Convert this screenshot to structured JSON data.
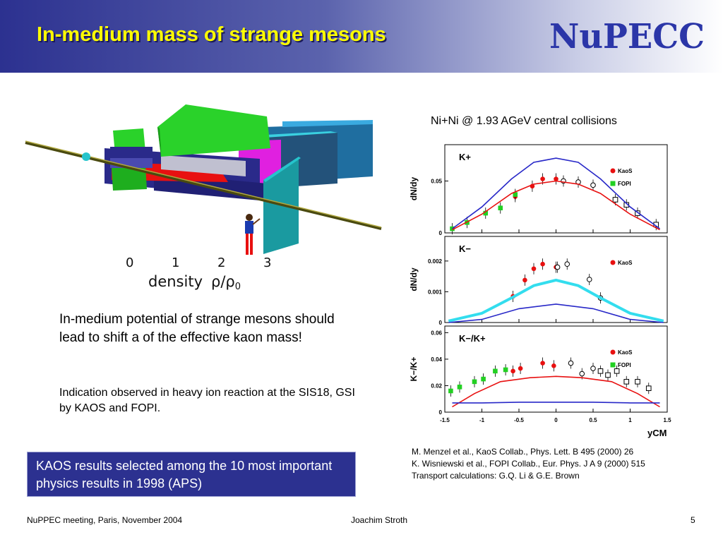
{
  "header": {
    "title": "In-medium mass of strange mesons",
    "logo_text": "NuPECC",
    "bg_color": "#2c3190",
    "title_color": "#ffff00"
  },
  "figure": {
    "density_ticks": [
      "0",
      "1",
      "2",
      "3"
    ],
    "density_label": "density",
    "rho_label": "ρ/ρ",
    "rho_sub": "0"
  },
  "text": {
    "paragraph1": "In-medium potential of strange mesons should lead to shift a of the effective kaon mass!",
    "paragraph2": "Indication observed in heavy ion reaction at the SIS18, GSI by KAOS and FOPI."
  },
  "highlight": {
    "text": "KAOS results selected among the 10 most important physics results in 1998 (APS)"
  },
  "references": [
    "M. Menzel et al., KaoS Collab.,  Phys. Lett. B 495 (2000) 26",
    "K. Wisniewski et al., FOPI Collab., Eur. Phys. J A 9 (2000) 515",
    "Transport calculations: G.Q. Li & G.E. Brown"
  ],
  "footer": {
    "left": "NuPPEC meeting, Paris, November  2004",
    "center": "Joachim Stroth",
    "page": "5"
  },
  "colors": {
    "kaos": "#e81010",
    "fopi": "#22d022",
    "blue_curve": "#2828c8",
    "cyan_curve": "#33ddee"
  },
  "chart_data": [
    {
      "type": "scatter",
      "title": "Ni+Ni @ 1.93 AGeV  central collisions",
      "panel_label": "K+",
      "ylabel": "dN/dy",
      "xlim": [
        -1.5,
        1.5
      ],
      "ylim": [
        0,
        0.085
      ],
      "yticks": [
        {
          "v": 0,
          "label": "0"
        },
        {
          "v": 0.05,
          "label": "0.05"
        }
      ],
      "legend": [
        "KaoS",
        "FOPI"
      ],
      "series": [
        {
          "name": "KaoS",
          "marker": "circle-filled",
          "x": [
            -0.55,
            -0.32,
            -0.18,
            0.0
          ],
          "y": [
            0.035,
            0.045,
            0.052,
            0.052
          ]
        },
        {
          "name": "FOPI",
          "marker": "square-filled",
          "x": [
            -1.4,
            -1.2,
            -0.95,
            -0.75,
            -0.55
          ],
          "y": [
            0.004,
            0.01,
            0.019,
            0.024,
            0.037
          ]
        },
        {
          "marker": "circle-open",
          "x": [
            0.1,
            0.3,
            0.5
          ],
          "y": [
            0.05,
            0.049,
            0.046
          ]
        },
        {
          "marker": "square-open",
          "x": [
            0.8,
            0.95,
            1.1,
            1.35
          ],
          "y": [
            0.032,
            0.027,
            0.019,
            0.008
          ]
        },
        {
          "line": "blue",
          "x": [
            -1.4,
            -1.0,
            -0.6,
            -0.3,
            0.0,
            0.3,
            0.6,
            1.0,
            1.4
          ],
          "y": [
            0.004,
            0.025,
            0.052,
            0.068,
            0.072,
            0.068,
            0.052,
            0.025,
            0.004
          ]
        },
        {
          "line": "red",
          "x": [
            -1.4,
            -1.0,
            -0.6,
            -0.3,
            0.0,
            0.3,
            0.6,
            1.0,
            1.4
          ],
          "y": [
            0.003,
            0.018,
            0.038,
            0.047,
            0.05,
            0.047,
            0.038,
            0.018,
            0.003
          ]
        }
      ]
    },
    {
      "type": "scatter",
      "panel_label": "K−",
      "ylabel": "dN/dy",
      "xlim": [
        -1.5,
        1.5
      ],
      "ylim": [
        0,
        0.0028
      ],
      "yticks": [
        {
          "v": 0,
          "label": "0"
        },
        {
          "v": 0.001,
          "label": "0.001"
        },
        {
          "v": 0.002,
          "label": "0.002"
        }
      ],
      "legend": [
        "KaoS"
      ],
      "series": [
        {
          "name": "KaoS",
          "marker": "circle-filled",
          "x": [
            -0.58,
            -0.42,
            -0.3,
            -0.18,
            0.0
          ],
          "y": [
            0.00085,
            0.00138,
            0.00175,
            0.0019,
            0.0018
          ]
        },
        {
          "marker": "circle-open",
          "x": [
            0.02,
            0.15,
            0.45,
            0.6
          ],
          "y": [
            0.0018,
            0.0019,
            0.0014,
            0.0008
          ]
        },
        {
          "line": "cyan",
          "x": [
            -1.45,
            -1.0,
            -0.6,
            -0.3,
            0.0,
            0.3,
            0.6,
            1.0,
            1.45
          ],
          "y": [
            5e-05,
            0.0003,
            0.0008,
            0.0012,
            0.00138,
            0.0012,
            0.0008,
            0.0003,
            5e-05
          ]
        },
        {
          "line": "blue",
          "x": [
            -1.45,
            -1.0,
            -0.5,
            0.0,
            0.5,
            1.0,
            1.45
          ],
          "y": [
            0.0,
            0.0001,
            0.00045,
            0.0006,
            0.00045,
            0.0001,
            0.0
          ]
        }
      ]
    },
    {
      "type": "scatter",
      "panel_label": "K−/K+",
      "ylabel": "K−/K+",
      "xlabel": "yCM",
      "xlim": [
        -1.5,
        1.5
      ],
      "ylim": [
        0,
        0.065
      ],
      "yticks": [
        {
          "v": 0,
          "label": "0"
        },
        {
          "v": 0.02,
          "label": "0.02"
        },
        {
          "v": 0.04,
          "label": "0.04"
        },
        {
          "v": 0.06,
          "label": "0.06"
        }
      ],
      "xticks": [
        {
          "v": -1.5,
          "label": "-1.5"
        },
        {
          "v": -1.0,
          "label": "-1"
        },
        {
          "v": -0.5,
          "label": "-0.5"
        },
        {
          "v": 0.0,
          "label": "0"
        },
        {
          "v": 0.5,
          "label": "0.5"
        },
        {
          "v": 1.0,
          "label": "1"
        },
        {
          "v": 1.5,
          "label": "1.5"
        }
      ],
      "legend": [
        "KaoS",
        "FOPI"
      ],
      "series": [
        {
          "name": "KaoS",
          "marker": "circle-filled",
          "x": [
            -0.58,
            -0.48,
            -0.18,
            -0.03
          ],
          "y": [
            0.031,
            0.033,
            0.037,
            0.035
          ]
        },
        {
          "name": "FOPI",
          "marker": "square-filled",
          "x": [
            -1.42,
            -1.3,
            -1.1,
            -0.98,
            -0.82,
            -0.68
          ],
          "y": [
            0.016,
            0.019,
            0.023,
            0.025,
            0.031,
            0.032
          ]
        },
        {
          "marker": "circle-open",
          "x": [
            0.2,
            0.35,
            0.5
          ],
          "y": [
            0.037,
            0.029,
            0.033
          ]
        },
        {
          "marker": "square-open",
          "x": [
            0.6,
            0.7,
            0.82,
            0.95,
            1.1,
            1.25
          ],
          "y": [
            0.031,
            0.028,
            0.031,
            0.023,
            0.023,
            0.018
          ]
        },
        {
          "line": "red",
          "x": [
            -1.4,
            -1.1,
            -0.75,
            -0.35,
            0.0,
            0.35,
            0.75,
            1.1,
            1.4
          ],
          "y": [
            0.004,
            0.014,
            0.023,
            0.026,
            0.027,
            0.026,
            0.023,
            0.014,
            0.004
          ]
        },
        {
          "line": "blue",
          "x": [
            -1.4,
            -1.0,
            -0.5,
            0.0,
            0.5,
            1.0,
            1.4
          ],
          "y": [
            0.007,
            0.007,
            0.0075,
            0.0075,
            0.0075,
            0.007,
            0.007
          ]
        }
      ]
    }
  ]
}
